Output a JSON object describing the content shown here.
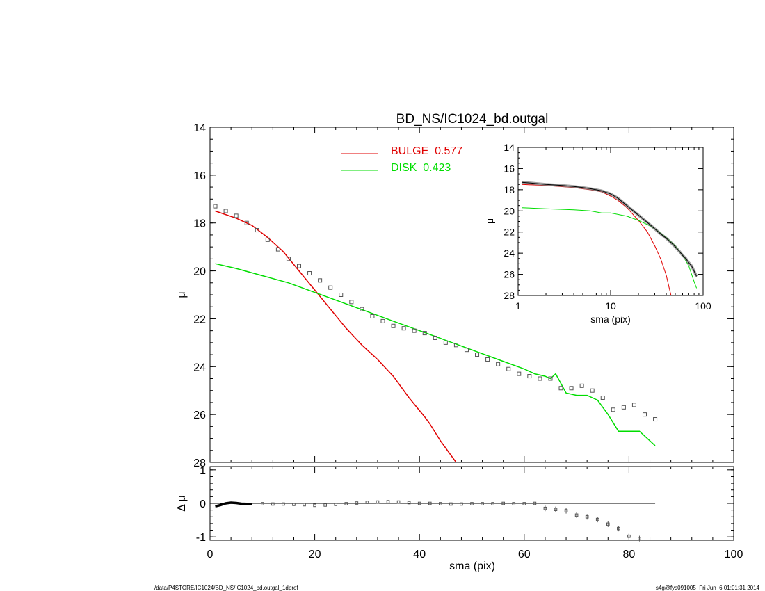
{
  "colors": {
    "bulge": "#e00000",
    "disk": "#00dd00",
    "data": "#555555",
    "axis": "#000000"
  },
  "footer": {
    "left": "/data/P4STORE/IC1024/BD_NS/IC1024_bd.outgal_1dprof",
    "right": "s4g@fys091005  Fri Jun  6 01:01:31 2014"
  },
  "chart_data": [
    {
      "type": "line",
      "title": "BD_NS/IC1024_bd.outgal",
      "xlabel": "",
      "ylabel": "μ",
      "xlim": [
        0,
        100
      ],
      "ylim": [
        28,
        14
      ],
      "y_inverted": true,
      "yticks": [
        "14",
        "16",
        "18",
        "20",
        "22",
        "24",
        "26",
        "28"
      ],
      "legend": [
        {
          "label": "BULGE  0.577",
          "color": "#e00000"
        },
        {
          "label": "DISK  0.423",
          "color": "#00dd00"
        }
      ],
      "series": [
        {
          "name": "BULGE",
          "color": "#e00000",
          "x": [
            1,
            5,
            8,
            11,
            14,
            17,
            20,
            23,
            26,
            29,
            32,
            35,
            38,
            41,
            42,
            44,
            46,
            47
          ],
          "y": [
            17.5,
            17.8,
            18.1,
            18.6,
            19.2,
            20.0,
            20.8,
            21.6,
            22.4,
            23.1,
            23.7,
            24.4,
            25.3,
            26.1,
            26.4,
            27.1,
            27.7,
            28.0
          ]
        },
        {
          "name": "DISK",
          "color": "#00dd00",
          "x": [
            1,
            5,
            10,
            15,
            20,
            25,
            30,
            35,
            40,
            45,
            50,
            55,
            60,
            62,
            64,
            65,
            66,
            68,
            70,
            72,
            74,
            76,
            78,
            80,
            82,
            85
          ],
          "y": [
            19.7,
            19.9,
            20.2,
            20.5,
            20.9,
            21.3,
            21.7,
            22.1,
            22.5,
            22.9,
            23.3,
            23.7,
            24.1,
            24.3,
            24.4,
            24.5,
            24.3,
            25.1,
            25.2,
            25.2,
            25.4,
            26.0,
            26.7,
            26.7,
            26.7,
            27.3
          ]
        },
        {
          "name": "",
          "color": "#555555",
          "x": [
            1,
            3,
            5,
            7,
            9,
            11,
            13,
            15,
            17,
            19,
            21,
            23,
            25,
            27,
            29,
            31,
            33,
            35,
            37,
            39,
            41,
            43,
            45,
            47,
            49,
            51,
            53,
            55,
            57,
            59,
            61,
            63,
            65,
            67,
            69,
            71,
            73,
            75,
            77,
            79,
            81,
            83,
            85
          ],
          "y": [
            17.3,
            17.5,
            17.7,
            18.0,
            18.3,
            18.7,
            19.1,
            19.5,
            19.8,
            20.1,
            20.4,
            20.7,
            21.0,
            21.3,
            21.6,
            21.9,
            22.1,
            22.3,
            22.4,
            22.5,
            22.6,
            22.8,
            23.0,
            23.1,
            23.3,
            23.5,
            23.7,
            23.9,
            24.1,
            24.3,
            24.4,
            24.5,
            24.5,
            24.9,
            24.9,
            24.8,
            25.0,
            25.3,
            25.8,
            25.7,
            25.6,
            26.0,
            26.2
          ]
        }
      ]
    },
    {
      "type": "line",
      "title": "",
      "xlabel": "sma (pix)",
      "ylabel": "μ",
      "xscale": "log",
      "xlim": [
        1,
        100
      ],
      "ylim": [
        28,
        14
      ],
      "y_inverted": true,
      "xticks": [
        "1",
        "10",
        "100"
      ],
      "yticks": [
        "14",
        "16",
        "18",
        "20",
        "22",
        "24",
        "26",
        "28"
      ],
      "series": [
        {
          "name": "BULGE",
          "color": "#e00000",
          "x": [
            1.1,
            2,
            4,
            6,
            8,
            10,
            12,
            15,
            20,
            25,
            30,
            35,
            40,
            43,
            45
          ],
          "y": [
            17.5,
            17.6,
            17.8,
            18.0,
            18.2,
            18.6,
            19.0,
            19.7,
            20.9,
            22.0,
            23.3,
            24.6,
            26.1,
            27.3,
            28.0
          ]
        },
        {
          "name": "DISK",
          "color": "#00dd00",
          "x": [
            1.1,
            2,
            4,
            6,
            8,
            10,
            15,
            20,
            25,
            30,
            40,
            50,
            60,
            70,
            80,
            85
          ],
          "y": [
            19.7,
            19.8,
            19.9,
            20.0,
            20.2,
            20.2,
            20.5,
            20.9,
            21.3,
            21.7,
            22.5,
            23.3,
            24.2,
            25.2,
            26.7,
            27.3
          ]
        },
        {
          "name": "",
          "color": "#555555",
          "x": [
            1.1,
            1.5,
            2,
            3,
            4,
            5,
            6,
            8,
            10,
            12,
            15,
            20,
            25,
            30,
            35,
            40,
            45,
            50,
            55,
            60,
            65,
            70,
            75,
            80,
            85
          ],
          "y": [
            17.3,
            17.4,
            17.5,
            17.6,
            17.7,
            17.8,
            17.9,
            18.1,
            18.4,
            18.8,
            19.5,
            20.4,
            21.1,
            21.7,
            22.2,
            22.6,
            23.0,
            23.4,
            23.8,
            24.2,
            24.5,
            24.9,
            25.2,
            25.7,
            26.2
          ]
        }
      ]
    },
    {
      "type": "scatter",
      "title": "",
      "xlabel": "sma (pix)",
      "ylabel": "Δ μ",
      "xlim": [
        0,
        100
      ],
      "ylim": [
        -1.1,
        1.1
      ],
      "xticks": [
        "0",
        "20",
        "40",
        "60",
        "80",
        "100"
      ],
      "yticks": [
        "-1",
        "0",
        "1"
      ],
      "zero_line": {
        "x": [
          1,
          85
        ],
        "y": 0
      },
      "series": [
        {
          "name": "",
          "color": "#555555",
          "x": [
            1,
            2,
            3,
            4,
            5,
            6,
            8,
            10,
            12,
            14,
            16,
            18,
            20,
            22,
            24,
            26,
            28,
            30,
            32,
            34,
            36,
            38,
            40,
            42,
            44,
            46,
            48,
            50,
            52,
            54,
            56,
            58,
            60,
            62,
            64,
            66,
            68,
            70,
            72,
            74,
            76,
            78,
            80,
            82,
            84
          ],
          "y": [
            -0.09,
            -0.05,
            0.0,
            0.02,
            0.01,
            -0.01,
            -0.02,
            -0.01,
            -0.02,
            -0.02,
            -0.03,
            -0.04,
            -0.06,
            -0.05,
            -0.03,
            -0.01,
            0.01,
            0.03,
            0.04,
            0.05,
            0.04,
            0.02,
            0.0,
            0.0,
            -0.01,
            -0.02,
            -0.02,
            -0.01,
            -0.01,
            -0.01,
            0.0,
            -0.01,
            -0.01,
            0.0,
            -0.15,
            -0.18,
            -0.22,
            -0.35,
            -0.4,
            -0.48,
            -0.62,
            -0.75,
            -0.98,
            -1.05,
            -1.12
          ]
        }
      ]
    }
  ]
}
